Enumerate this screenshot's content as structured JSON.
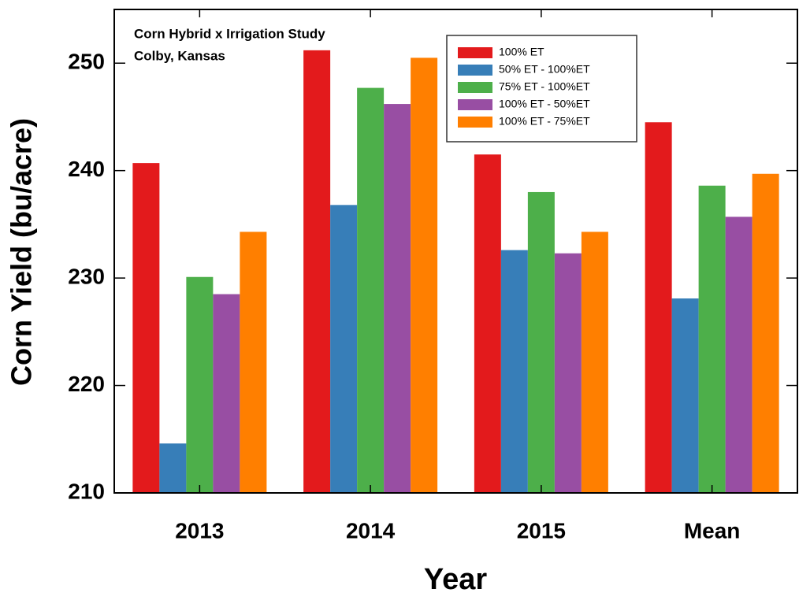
{
  "chart_data": {
    "type": "bar",
    "title": "Corn Hybrid x Irrigation Study",
    "subtitle": "Colby, Kansas",
    "x_label": "Year",
    "y_label": "Corn Yield (bu/acre)",
    "categories": [
      "2013",
      "2014",
      "2015",
      "Mean"
    ],
    "series": [
      {
        "name": "100% ET",
        "color": "#e31a1c",
        "values": [
          240.7,
          251.2,
          241.5,
          244.5
        ]
      },
      {
        "name": "50% ET - 100%ET",
        "color": "#377eb8",
        "values": [
          214.6,
          236.8,
          232.6,
          228.1
        ]
      },
      {
        "name": "75% ET - 100%ET",
        "color": "#4daf4a",
        "values": [
          230.1,
          247.7,
          238.0,
          238.6
        ]
      },
      {
        "name": "100% ET - 50%ET",
        "color": "#984ea3",
        "values": [
          228.5,
          246.2,
          232.3,
          235.7
        ]
      },
      {
        "name": "100% ET - 75%ET",
        "color": "#ff7f00",
        "values": [
          234.3,
          250.5,
          234.3,
          239.7
        ]
      }
    ],
    "ylim": [
      210,
      255
    ],
    "yticks": [
      210,
      220,
      230,
      240,
      250
    ],
    "legend": "upper right"
  }
}
